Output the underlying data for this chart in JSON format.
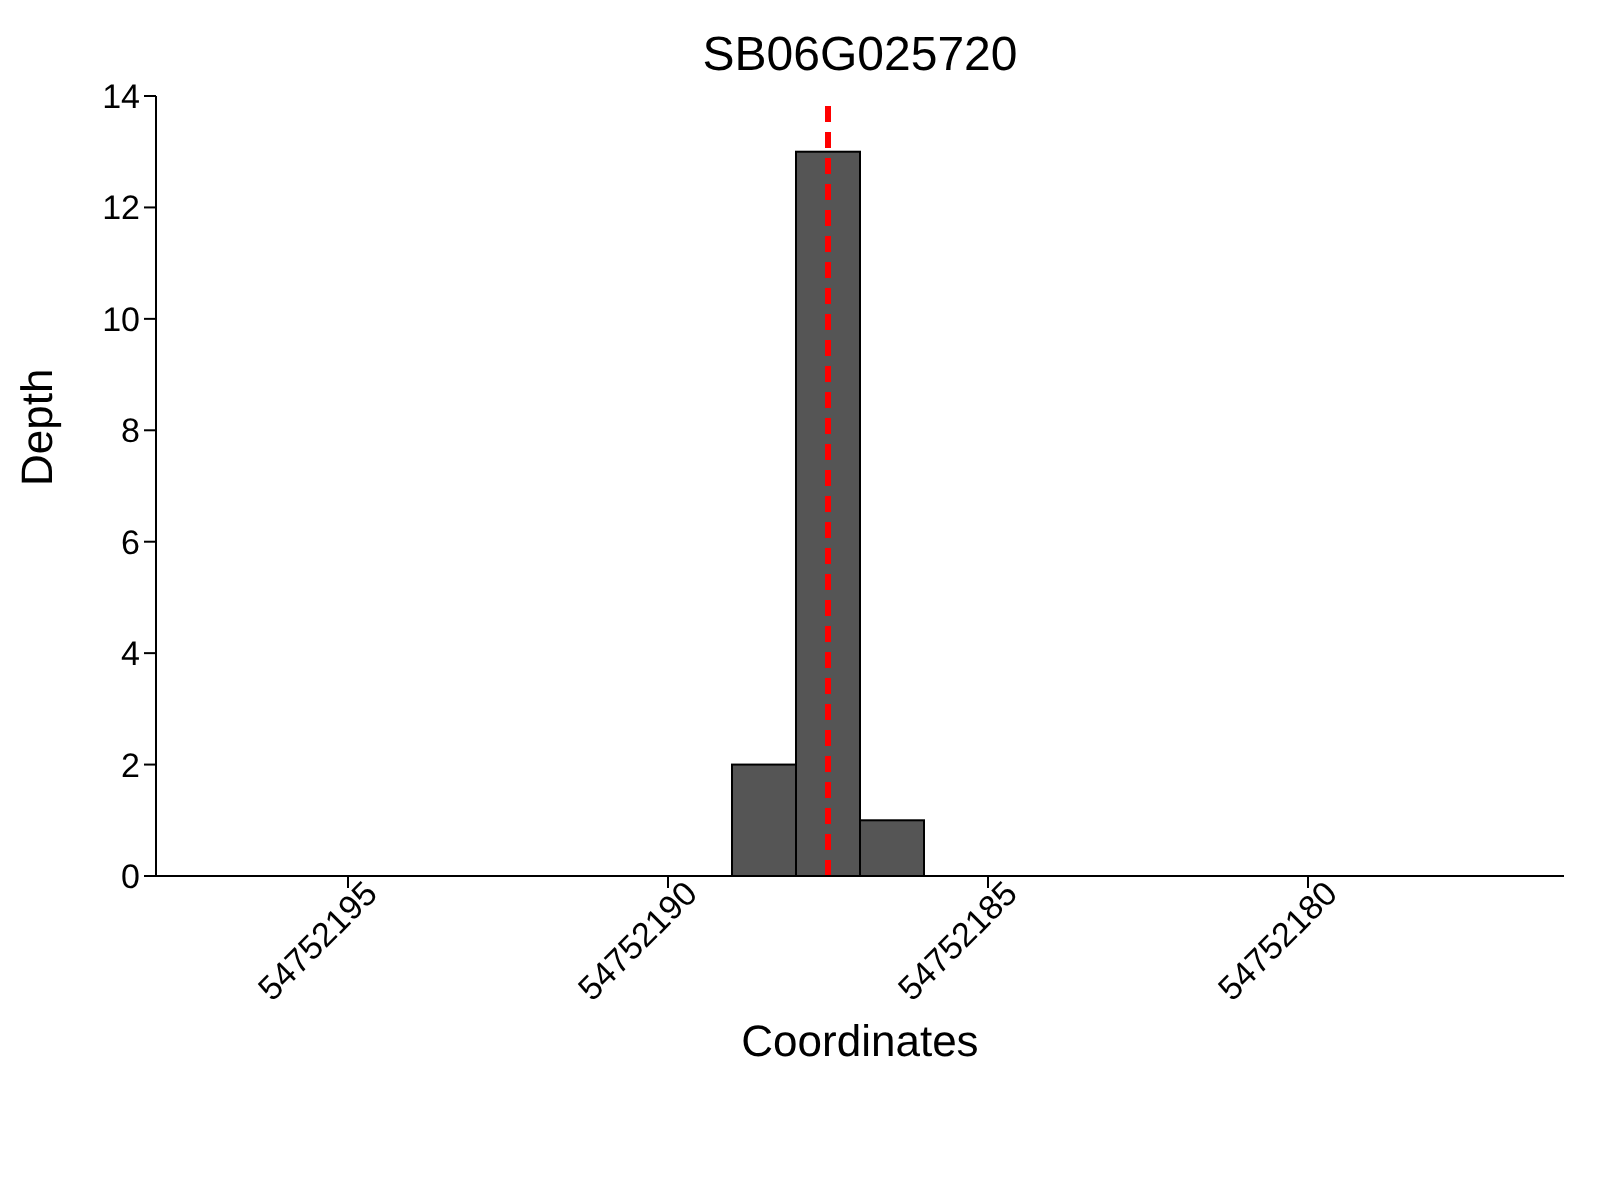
{
  "chart_data": {
    "type": "histogram",
    "title": "SB06G025720",
    "xlabel": "Coordinates",
    "ylabel": "Depth",
    "bins": [
      54752186,
      54752187,
      54752188,
      54752189
    ],
    "values": [
      1,
      13,
      2
    ],
    "color": "#555555",
    "xlim": [
      54752198,
      54752176
    ],
    "xticks": [
      54752195,
      54752190,
      54752185,
      54752180
    ],
    "ylim": [
      0,
      14
    ],
    "yticks": [
      0,
      2,
      4,
      6,
      8,
      10,
      12,
      14
    ],
    "ref_lines": [
      {
        "axis": "x",
        "value": 54752187.5,
        "color": "#ff0000",
        "line_style": "dashed"
      }
    ],
    "grid": false,
    "legend": false
  }
}
